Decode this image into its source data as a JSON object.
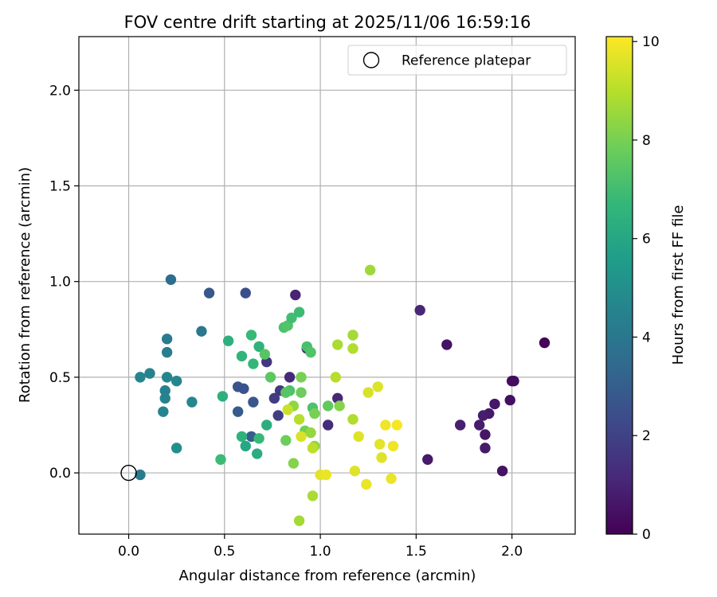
{
  "chart_data": {
    "type": "scatter",
    "title": "FOV centre drift starting at 2025/11/06 16:59:16",
    "xlabel": "Angular distance from reference (arcmin)",
    "ylabel": "Rotation from reference (arcmin)",
    "xlim": [
      -0.26,
      2.33
    ],
    "ylim": [
      -0.32,
      2.28
    ],
    "x_ticks": [
      0.0,
      0.5,
      1.0,
      1.5,
      2.0
    ],
    "x_tick_labels": [
      "0.0",
      "0.5",
      "1.0",
      "1.5",
      "2.0"
    ],
    "y_ticks": [
      0.0,
      0.5,
      1.0,
      1.5,
      2.0
    ],
    "y_tick_labels": [
      "0.0",
      "0.5",
      "1.0",
      "1.5",
      "2.0"
    ],
    "grid": true,
    "legend": {
      "position": "top-right",
      "entries": [
        "Reference platepar"
      ]
    },
    "reference_point": {
      "x": 0.0,
      "y": 0.0,
      "label": "Reference platepar"
    },
    "colorbar": {
      "label": "Hours from first FF file",
      "range": [
        0,
        10.1
      ],
      "ticks": [
        0,
        2,
        4,
        6,
        8,
        10
      ],
      "tick_labels": [
        "0",
        "2",
        "4",
        "6",
        "8",
        "10"
      ],
      "colormap": [
        "#440154",
        "#482878",
        "#3e4989",
        "#31688e",
        "#26828e",
        "#1f9e89",
        "#35b779",
        "#6ece58",
        "#b5de2b",
        "#fde725"
      ]
    },
    "points_format": "[x_arcmin, y_arcmin, hours]",
    "points": [
      [
        2.17,
        0.68,
        0.1
      ],
      [
        2.01,
        0.48,
        0.3
      ],
      [
        2.0,
        0.48,
        0.3
      ],
      [
        1.99,
        0.38,
        0.4
      ],
      [
        1.95,
        0.01,
        0.5
      ],
      [
        1.91,
        0.36,
        0.6
      ],
      [
        1.88,
        0.31,
        0.7
      ],
      [
        1.85,
        0.3,
        0.8
      ],
      [
        1.83,
        0.25,
        0.8
      ],
      [
        1.86,
        0.2,
        0.6
      ],
      [
        1.86,
        0.13,
        0.7
      ],
      [
        1.66,
        0.67,
        0.5
      ],
      [
        1.73,
        0.25,
        0.9
      ],
      [
        1.56,
        0.07,
        0.7
      ],
      [
        1.52,
        0.85,
        1.1
      ],
      [
        0.87,
        0.93,
        1.0
      ],
      [
        0.93,
        0.65,
        1.2
      ],
      [
        0.84,
        0.5,
        1.2
      ],
      [
        1.09,
        0.39,
        1.1
      ],
      [
        1.04,
        0.25,
        1.3
      ],
      [
        0.72,
        0.58,
        1.6
      ],
      [
        0.76,
        0.39,
        1.8
      ],
      [
        0.79,
        0.43,
        1.7
      ],
      [
        0.78,
        0.3,
        1.9
      ],
      [
        0.42,
        0.94,
        2.8
      ],
      [
        0.61,
        0.94,
        2.5
      ],
      [
        0.57,
        0.45,
        2.7
      ],
      [
        0.6,
        0.44,
        2.6
      ],
      [
        0.57,
        0.32,
        2.9
      ],
      [
        0.65,
        0.37,
        2.8
      ],
      [
        0.64,
        0.19,
        3.0
      ],
      [
        0.22,
        1.01,
        3.6
      ],
      [
        0.38,
        0.74,
        4.0
      ],
      [
        0.2,
        0.7,
        4.2
      ],
      [
        0.2,
        0.63,
        4.3
      ],
      [
        0.06,
        0.5,
        4.6
      ],
      [
        0.11,
        0.52,
        4.5
      ],
      [
        0.2,
        0.5,
        4.6
      ],
      [
        0.25,
        0.48,
        4.7
      ],
      [
        0.19,
        0.43,
        4.4
      ],
      [
        0.19,
        0.39,
        4.5
      ],
      [
        0.18,
        0.32,
        4.6
      ],
      [
        0.33,
        0.37,
        4.7
      ],
      [
        0.25,
        0.13,
        5.0
      ],
      [
        0.06,
        -0.01,
        4.2
      ],
      [
        0.52,
        0.69,
        6.4
      ],
      [
        0.64,
        0.72,
        6.8
      ],
      [
        0.59,
        0.61,
        6.6
      ],
      [
        0.65,
        0.57,
        6.7
      ],
      [
        0.68,
        0.66,
        6.5
      ],
      [
        0.49,
        0.4,
        6.4
      ],
      [
        0.72,
        0.25,
        6.3
      ],
      [
        0.59,
        0.19,
        6.5
      ],
      [
        0.61,
        0.14,
        6.0
      ],
      [
        0.67,
        0.1,
        6.3
      ],
      [
        0.68,
        0.18,
        6.8
      ],
      [
        0.48,
        0.07,
        6.9
      ],
      [
        0.71,
        0.62,
        7.4
      ],
      [
        0.81,
        0.76,
        7.2
      ],
      [
        0.83,
        0.77,
        7.3
      ],
      [
        0.85,
        0.81,
        7.0
      ],
      [
        0.89,
        0.84,
        6.9
      ],
      [
        0.93,
        0.66,
        7.1
      ],
      [
        0.95,
        0.63,
        7.3
      ],
      [
        0.74,
        0.5,
        7.5
      ],
      [
        0.84,
        0.43,
        7.2
      ],
      [
        0.9,
        0.42,
        7.8
      ],
      [
        0.82,
        0.42,
        7.4
      ],
      [
        0.9,
        0.5,
        8.0
      ],
      [
        0.96,
        0.34,
        7.2
      ],
      [
        1.04,
        0.35,
        7.6
      ],
      [
        0.97,
        0.31,
        8.0
      ],
      [
        0.82,
        0.17,
        7.8
      ],
      [
        0.86,
        0.35,
        8.4
      ],
      [
        0.86,
        0.05,
        8.2
      ],
      [
        0.92,
        0.22,
        7.9
      ],
      [
        0.95,
        0.21,
        8.5
      ],
      [
        0.97,
        0.14,
        8.4
      ],
      [
        1.1,
        0.35,
        8.2
      ],
      [
        1.26,
        1.06,
        8.6
      ],
      [
        1.09,
        0.67,
        8.8
      ],
      [
        1.17,
        0.72,
        8.7
      ],
      [
        1.17,
        0.65,
        8.9
      ],
      [
        1.08,
        0.5,
        9.0
      ],
      [
        1.17,
        0.28,
        8.9
      ],
      [
        0.83,
        0.33,
        9.3
      ],
      [
        0.89,
        0.28,
        9.0
      ],
      [
        0.9,
        0.19,
        9.5
      ],
      [
        0.96,
        0.13,
        9.1
      ],
      [
        0.96,
        -0.12,
        8.8
      ],
      [
        0.89,
        -0.25,
        8.7
      ],
      [
        1.0,
        -0.01,
        9.7
      ],
      [
        1.03,
        -0.01,
        9.8
      ],
      [
        1.18,
        0.01,
        9.6
      ],
      [
        1.2,
        0.19,
        9.6
      ],
      [
        1.24,
        -0.06,
        9.8
      ],
      [
        1.25,
        0.42,
        9.5
      ],
      [
        1.3,
        0.45,
        9.6
      ],
      [
        1.31,
        0.15,
        9.7
      ],
      [
        1.32,
        0.08,
        9.6
      ],
      [
        1.34,
        0.25,
        9.9
      ],
      [
        1.37,
        -0.03,
        9.8
      ],
      [
        1.38,
        0.14,
        9.9
      ],
      [
        1.4,
        0.25,
        10.0
      ]
    ]
  }
}
